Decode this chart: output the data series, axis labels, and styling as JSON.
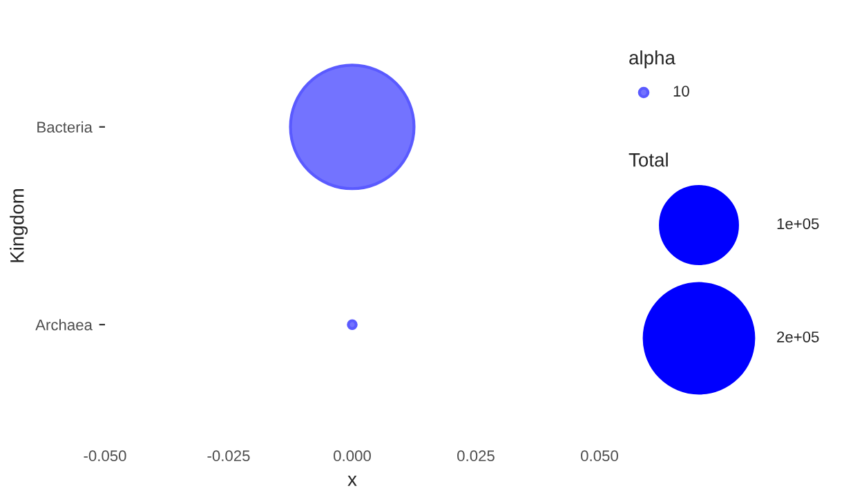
{
  "chart_data": {
    "type": "bubble",
    "orientation": "horizontal",
    "xlabel": "x",
    "ylabel": "Kingdom",
    "categories": [
      "Bacteria",
      "Archaea"
    ],
    "series": [
      {
        "name": "10",
        "color": "#7373ff",
        "values": [
          0,
          0
        ],
        "sizes": [
          250000,
          1000
        ]
      }
    ],
    "legend_title": "alpha",
    "size_legend": [
      {
        "value": 100000,
        "label": "1e+05"
      },
      {
        "value": 200000,
        "label": "2e+05"
      }
    ],
    "annotations": [
      "Total"
    ],
    "xlim": [
      -0.05,
      0.05
    ],
    "xticks": [
      {
        "value": -0.05,
        "label": "-0.050"
      },
      -0.025,
      {
        "value": 0,
        "label": "0.000"
      },
      0.025,
      {
        "value": 0.05,
        "label": "0.050"
      }
    ],
    "grid": false,
    "legend": "right"
  }
}
